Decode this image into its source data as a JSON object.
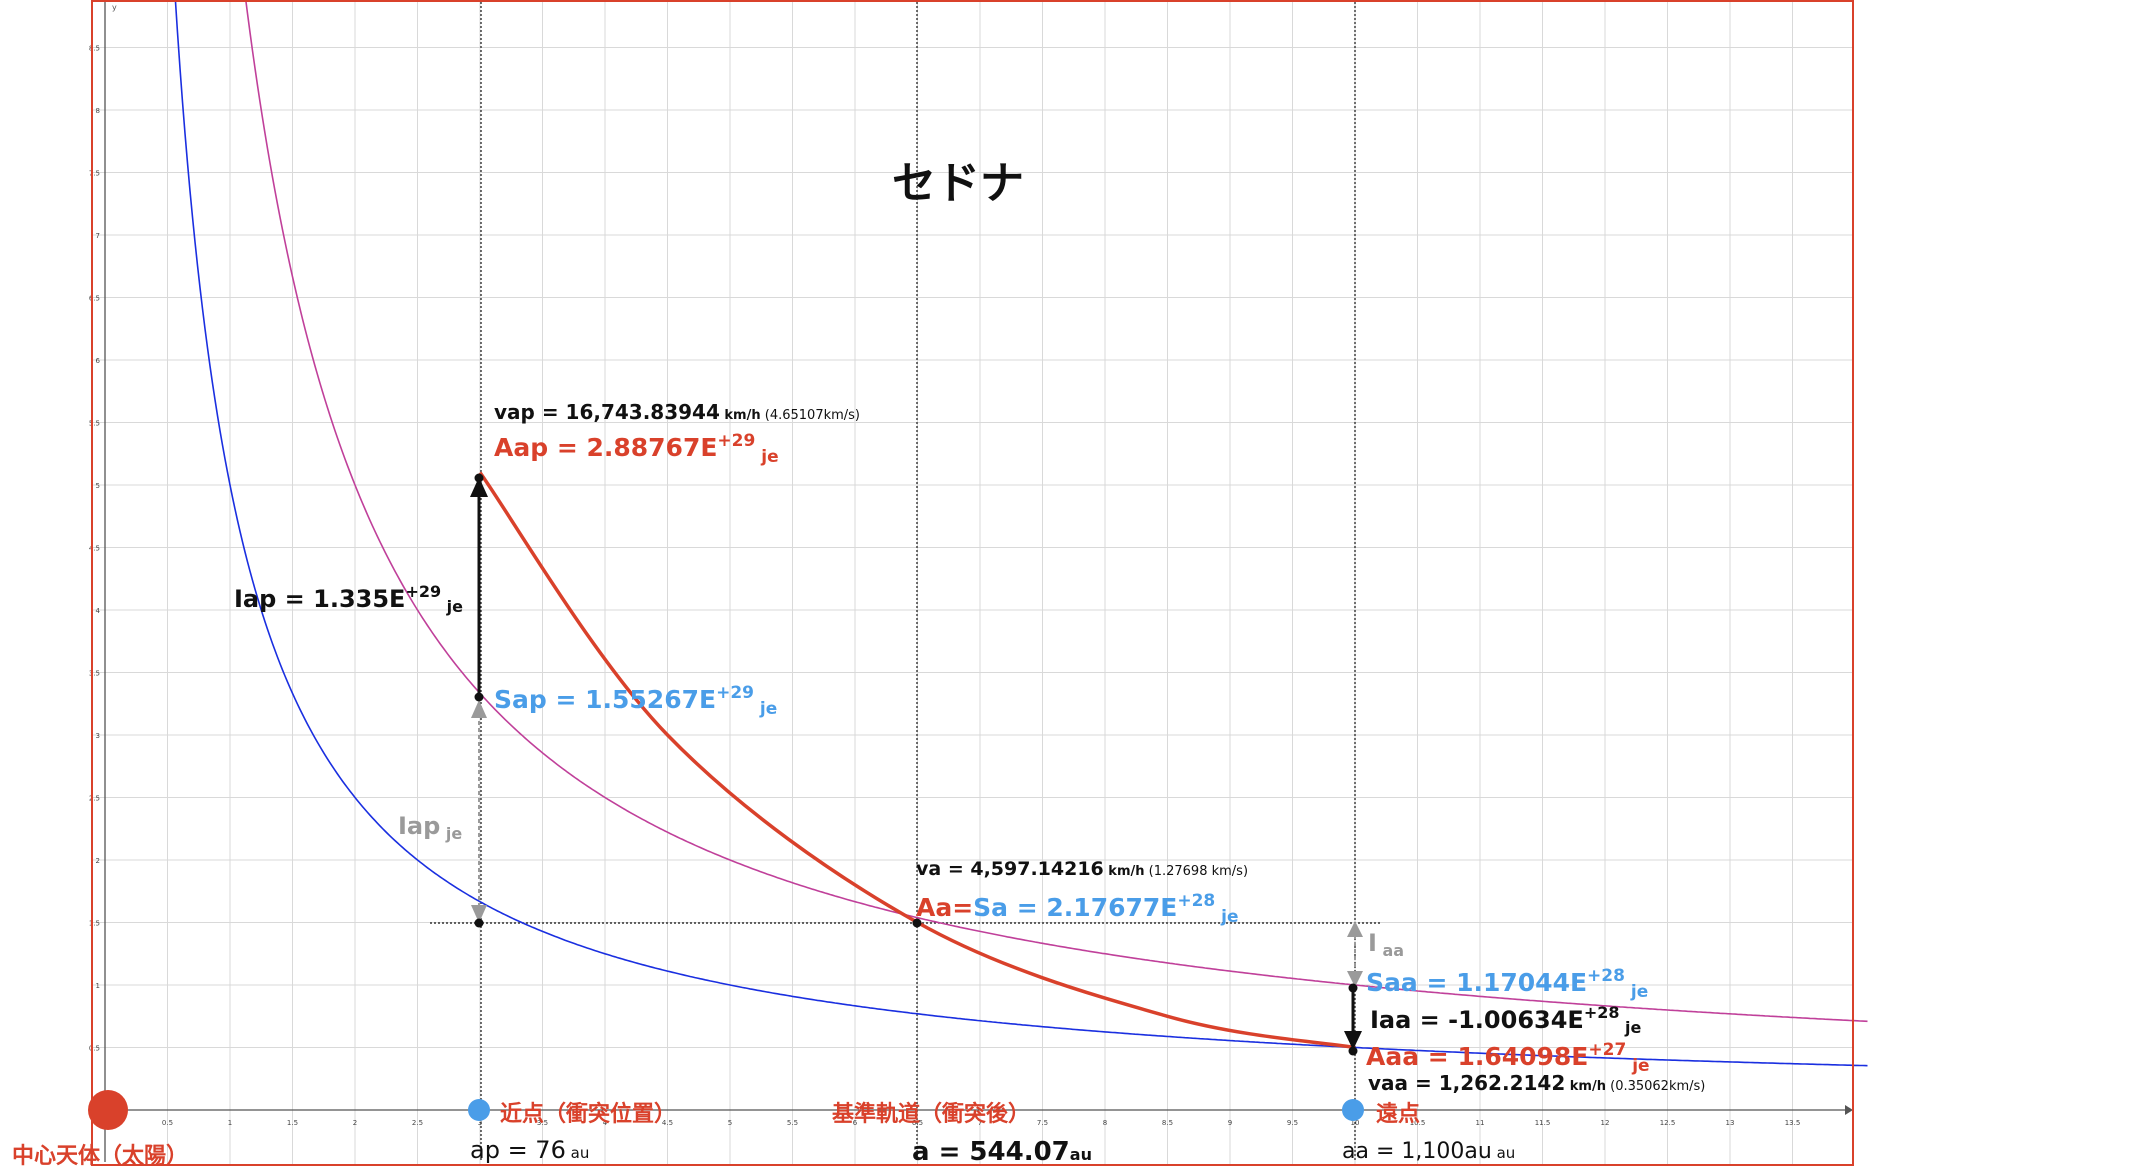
{
  "title": "セドナ",
  "colors": {
    "frame": "#d9412b",
    "grid": "#d9d9d9",
    "axis": "#555555",
    "blue_curve": "#1a2fe0",
    "magenta_curve": "#c0409a",
    "red_curve": "#d9412b",
    "black": "#111111",
    "gray_arrow": "#9a9a9a",
    "blue_text": "#4a9de8",
    "red_text": "#d9412b",
    "dot_blue": "#4a9de8",
    "dot_red": "#d9412b"
  },
  "axes": {
    "x_ticks": [
      "0.5",
      "1",
      "1.5",
      "2",
      "2.5",
      "3",
      "3.5",
      "4",
      "4.5",
      "5",
      "5.5",
      "6",
      "6.5",
      "7",
      "7.5",
      "8",
      "8.5",
      "9",
      "9.5",
      "10",
      "10.5",
      "11",
      "11.5",
      "12",
      "12.5",
      "13",
      "13.5"
    ],
    "y_ticks": [
      "0.5",
      "1",
      "1.5",
      "2",
      "2.5",
      "3",
      "3.5",
      "4",
      "4.5",
      "5",
      "5.5",
      "6",
      "6.5",
      "7",
      "7.5",
      "8",
      "8.5"
    ],
    "y_axis_label": "y"
  },
  "chart_data": {
    "type": "line",
    "title": "セドナ",
    "xlim": [
      -0.7,
      14.1
    ],
    "ylim": [
      0,
      8.9
    ],
    "grid": true,
    "series": [
      {
        "type": "curve",
        "formula": "y = k / x",
        "k": 5.0,
        "x_from": 0.3,
        "x_to": 14.1
      },
      {
        "type": "curve",
        "formula": "y = k / x",
        "k": 10.0,
        "x_from": 0.3,
        "x_to": 14.1
      },
      {
        "type": "curve",
        "formula": "cubic through (3, 5.1), (6.5, 1.5), (10, 0.5)",
        "x_from": 3,
        "x_to": 10,
        "points": [
          [
            3,
            5.1
          ],
          [
            4.5,
            3.0
          ],
          [
            6.5,
            1.5
          ],
          [
            8.5,
            0.75
          ],
          [
            10,
            0.5
          ]
        ]
      }
    ],
    "key_points": {
      "perihelion_x": 3,
      "reference_x": 6.5,
      "aphelion_x": 10,
      "Aap_y": 5.1,
      "Sap_y": 3.33,
      "Aa_Sa_y": 1.5,
      "Saa_y": 1.0,
      "Aaa_y": 0.5
    }
  },
  "annotations": {
    "vap": {
      "main": "vap = 16,743.83944",
      "unit": " km/h",
      "extra": "  (4.65107km/s)"
    },
    "aap": {
      "main": "Aap = 2.88767E",
      "exp": "+29",
      "unit": " je"
    },
    "iap": {
      "main": "Iap = 1.335E",
      "exp": "+29",
      "unit": " je"
    },
    "sap": {
      "main": "Sap = 1.55267E",
      "exp": "+29",
      "unit": " je"
    },
    "iap_gray": {
      "main": "Iap",
      "unit": " je"
    },
    "va": {
      "main": "va = 4,597.14216",
      "unit": " km/h",
      "extra": "  (1.27698 km/s)"
    },
    "aa_sa": {
      "red": "Aa=",
      "blue": "Sa = 2.17677E",
      "exp": "+28",
      "unit": " je"
    },
    "iaa_gray": {
      "main": "I",
      "unit": " aa"
    },
    "saa": {
      "main": "Saa = 1.17044E",
      "exp": "+28",
      "unit": " je"
    },
    "iaa": {
      "main": "Iaa = -1.00634E",
      "exp": "+28",
      "unit": " je"
    },
    "aaa": {
      "main": "Aaa = 1.64098E",
      "exp": "+27",
      "unit": " je"
    },
    "vaa": {
      "main": "vaa = 1,262.2142",
      "unit": " km/h",
      "extra": "  (0.35062km/s)"
    },
    "perihelion_label": "近点（衝突位置）",
    "reference_label": "基準軌道（衝突後）",
    "aphelion_label": "遠点",
    "sun_label": "中心天体（太陽）",
    "ap": {
      "main": "ap = 76",
      "unit": " au"
    },
    "a": {
      "main": "a = 544.07",
      "unit": "au"
    },
    "aa": {
      "main": "aa = 1,100au",
      "unit": " au"
    }
  }
}
